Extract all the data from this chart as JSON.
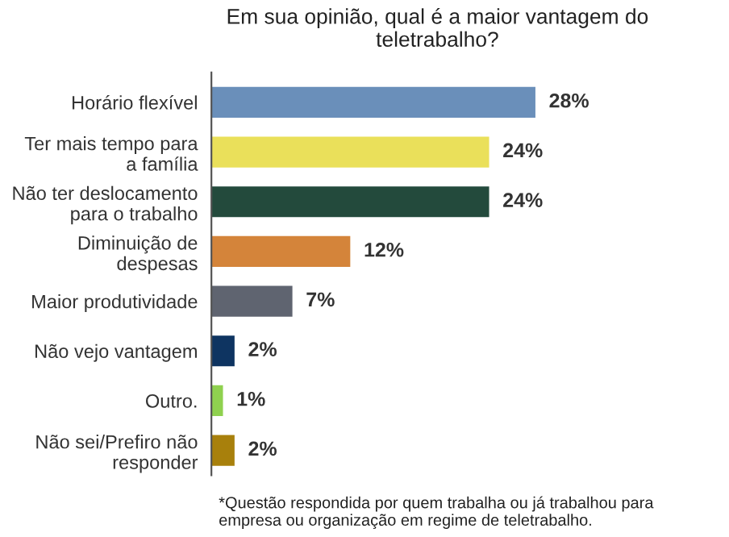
{
  "chart_data": {
    "type": "bar",
    "orientation": "horizontal",
    "title": "Em sua opinião, qual é a maior vantagem do\nteletrabalho?",
    "categories": [
      "Horário flexível",
      "Ter mais tempo para\na família",
      "Não ter deslocamento\npara o trabalho",
      "Diminuição de\ndespesas",
      "Maior produtividade",
      "Não vejo vantagem",
      "Outro.",
      "Não sei/Prefiro não\nresponder"
    ],
    "values": [
      28,
      24,
      24,
      12,
      7,
      2,
      1,
      2
    ],
    "value_labels": [
      "28%",
      "24%",
      "24%",
      "12%",
      "7%",
      "2%",
      "1%",
      "2%"
    ],
    "colors": [
      "#6a8fba",
      "#eae05a",
      "#234a3c",
      "#d4843a",
      "#5f6470",
      "#0e3461",
      "#8fd14f",
      "#a8800c"
    ],
    "grid": false,
    "legend": false,
    "annotations": [
      "*Questão respondida por quem trabalha ou já trabalhou para\nempresa ou organização em regime de teletrabalho."
    ]
  }
}
